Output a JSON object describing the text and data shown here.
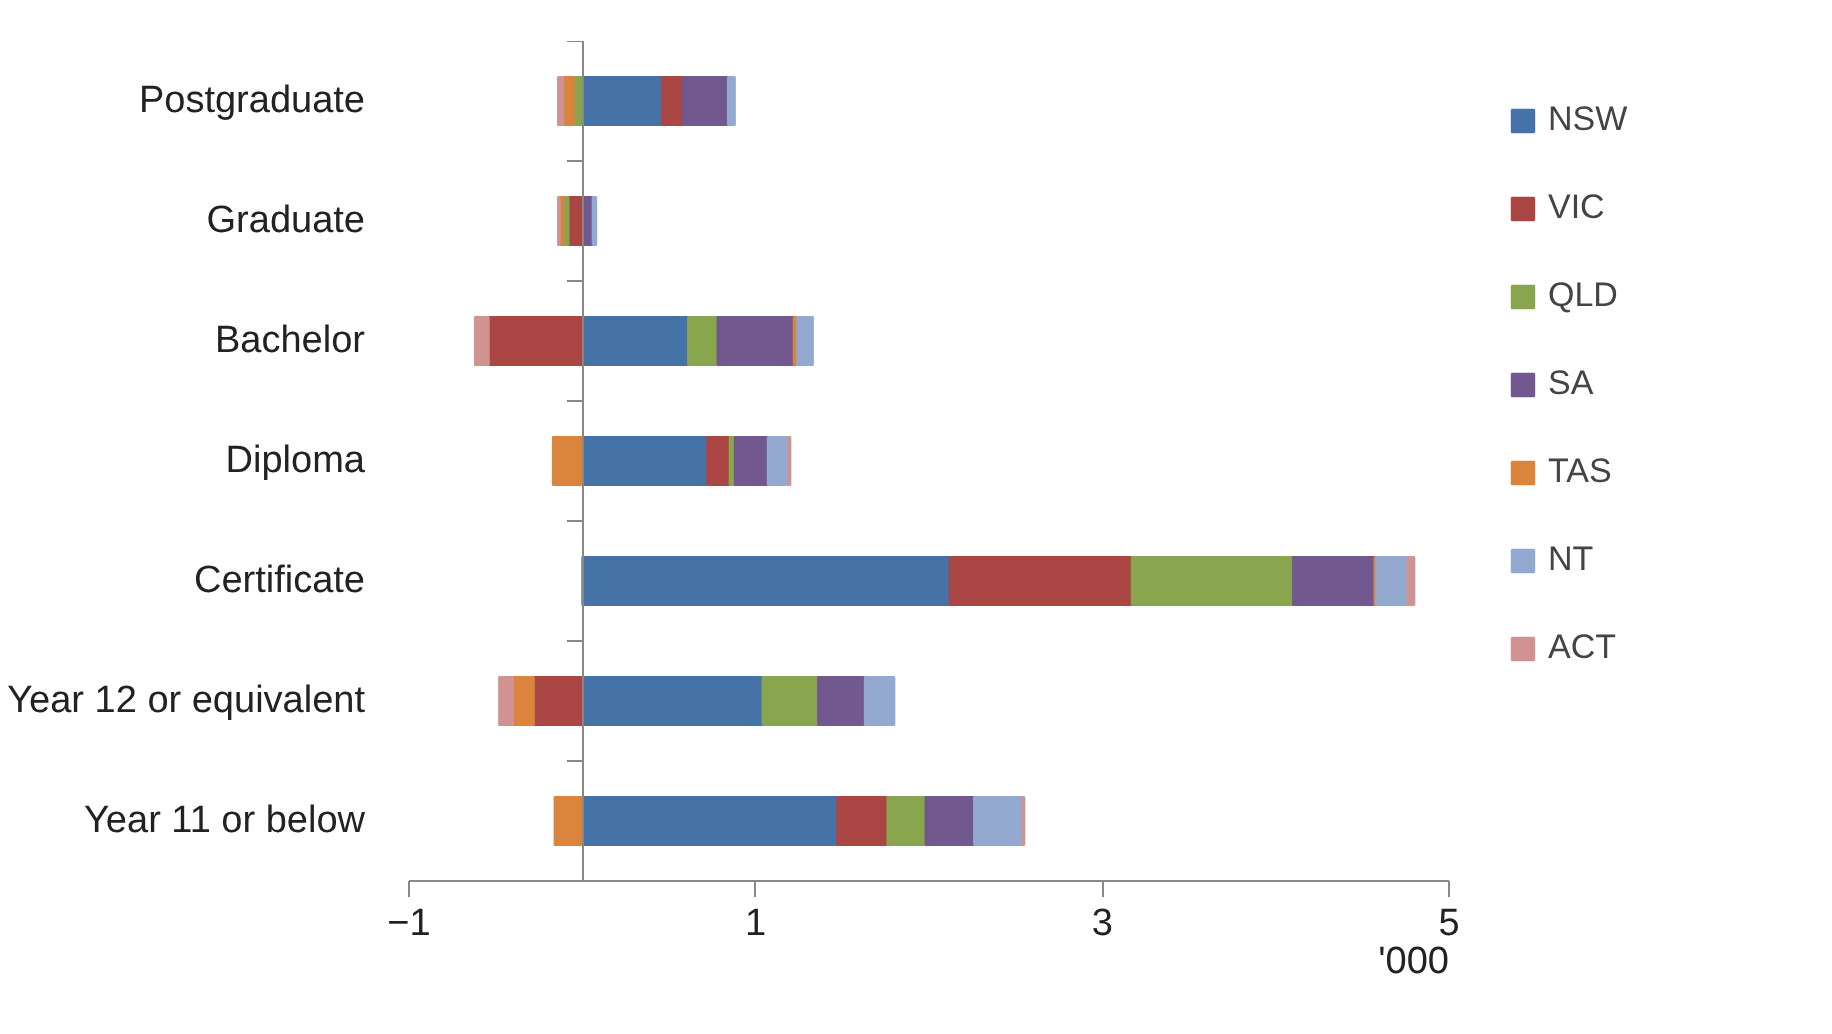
{
  "chart_data": {
    "type": "bar",
    "orientation": "horizontal",
    "stacked": true,
    "categories": [
      "Postgraduate",
      "Graduate",
      "Bachelor",
      "Diploma",
      "Certificate",
      "Year 12 or equivalent",
      "Year 11 or below"
    ],
    "series": [
      {
        "name": "NSW",
        "color": "#4572a7",
        "values": [
          0.46,
          0.01,
          0.61,
          0.72,
          2.12,
          1.04,
          1.47
        ]
      },
      {
        "name": "VIC",
        "color": "#aa4643",
        "values": [
          0.12,
          -0.08,
          -0.54,
          0.13,
          1.05,
          -0.28,
          0.29
        ]
      },
      {
        "name": "QLD",
        "color": "#89a54e",
        "values": [
          -0.05,
          -0.03,
          0.17,
          0.03,
          0.93,
          0.32,
          0.22
        ]
      },
      {
        "name": "SA",
        "color": "#71588f",
        "values": [
          0.26,
          0.05,
          0.44,
          0.19,
          0.47,
          0.27,
          0.28
        ]
      },
      {
        "name": "TAS",
        "color": "#db843d",
        "values": [
          -0.06,
          -0.02,
          0.02,
          -0.17,
          0.01,
          -0.12,
          -0.16
        ]
      },
      {
        "name": "NT",
        "color": "#93a9cf",
        "values": [
          0.04,
          0.02,
          0.09,
          0.12,
          0.18,
          0.17,
          0.28
        ]
      },
      {
        "name": "ACT",
        "color": "#d19392",
        "values": [
          -0.03,
          -0.01,
          -0.08,
          0.01,
          0.04,
          -0.08,
          0.01
        ]
      }
    ],
    "xlabel": "'000",
    "xlim": [
      -1,
      5
    ],
    "xticks": [
      -1,
      1,
      3,
      5
    ],
    "grid": false,
    "legend": "right"
  }
}
